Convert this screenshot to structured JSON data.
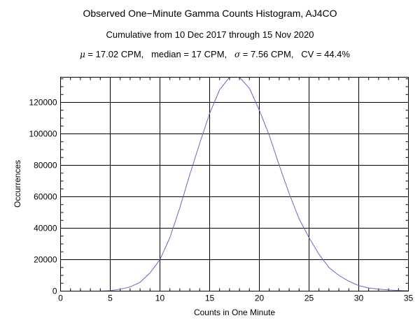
{
  "chart_data": {
    "type": "line",
    "title": "Observed One−Minute Gamma Counts Histogram, AJ4CO",
    "subtitle": "Cumulative from 10 Dec 2017 through 15 Nov 2020",
    "stats": {
      "mu_symbol": "μ",
      "mu_text": " = 17.02 CPM,   median = 17 CPM,   ",
      "sigma_symbol": "σ",
      "sigma_text": " = 7.56 CPM,   CV = 44.4%"
    },
    "xlabel": "Counts in One Minute",
    "ylabel": "Occurrences",
    "xlim": [
      0,
      35
    ],
    "ylim": [
      0,
      136000
    ],
    "xticks": [
      "0",
      "5",
      "10",
      "15",
      "20",
      "25",
      "30",
      "35"
    ],
    "yticks": [
      "0",
      "20000",
      "40000",
      "60000",
      "80000",
      "100000",
      "120000"
    ],
    "grid": true,
    "line_color": "#6666bb",
    "x": [
      4,
      5,
      6,
      7,
      8,
      9,
      10,
      11,
      12,
      13,
      14,
      15,
      16,
      17,
      18,
      19,
      20,
      21,
      22,
      23,
      24,
      25,
      26,
      27,
      28,
      29,
      30,
      31,
      32,
      33,
      34,
      35
    ],
    "y": [
      0,
      300,
      1200,
      2700,
      5600,
      11600,
      20000,
      34000,
      53000,
      74000,
      94000,
      113000,
      128000,
      136000,
      136000,
      129000,
      115000,
      99000,
      80000,
      62000,
      46000,
      34000,
      23400,
      15000,
      10000,
      6300,
      3500,
      2000,
      1200,
      700,
      400,
      200
    ]
  }
}
